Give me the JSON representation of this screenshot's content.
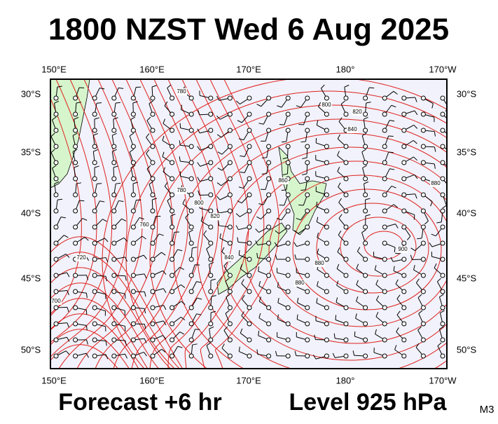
{
  "header": {
    "title": "1800 NZST Wed 6 Aug 2025"
  },
  "map": {
    "lon_labels": [
      "150°E",
      "160°E",
      "170°E",
      "180°",
      "170°W"
    ],
    "lat_labels": [
      "30°S",
      "35°S",
      "40°S",
      "45°S",
      "50°S"
    ],
    "contour_labels": [
      "780",
      "800",
      "820",
      "840",
      "860",
      "880",
      "780",
      "800",
      "820",
      "760",
      "720",
      "700",
      "840",
      "880",
      "900",
      "880"
    ]
  },
  "footer": {
    "forecast": "Forecast +6 hr",
    "level": "Level 925 hPa",
    "code": "M3"
  }
}
